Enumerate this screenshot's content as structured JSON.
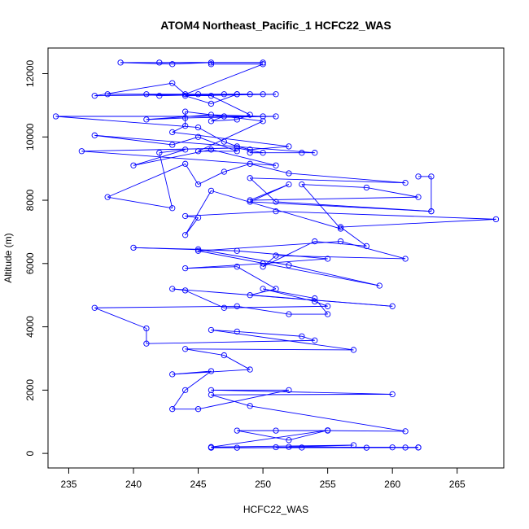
{
  "chart_data": {
    "type": "line",
    "title": "ATOM4 Northeast_Pacific_1 HCFC22_WAS",
    "xlabel": "HCFC22_WAS",
    "ylabel": "Altitude (m)",
    "xlim": [
      233.4,
      268.6
    ],
    "ylim": [
      -460,
      12810
    ],
    "xticks": [
      235,
      240,
      245,
      250,
      255,
      260,
      265
    ],
    "yticks": [
      0,
      2000,
      4000,
      6000,
      8000,
      10000,
      12000
    ],
    "grid": false,
    "legend": "none",
    "line_color": "#0000ff",
    "marker": "open-circle",
    "series": [
      {
        "points": [
          [
            246,
            180
          ],
          [
            262,
            190
          ],
          [
            248,
            180
          ],
          [
            261,
            185
          ],
          [
            253,
            185
          ],
          [
            258,
            180
          ],
          [
            251,
            195
          ],
          [
            262,
            185
          ],
          [
            246,
            185
          ],
          [
            260,
            190
          ],
          [
            252,
            205
          ],
          [
            257,
            260
          ],
          [
            246,
            200
          ],
          [
            255,
            730
          ],
          [
            252,
            420
          ],
          [
            248,
            720
          ],
          [
            251,
            720
          ],
          [
            255,
            720
          ],
          [
            261,
            700
          ],
          [
            249,
            1500
          ],
          [
            246,
            1850
          ],
          [
            260,
            1870
          ],
          [
            246,
            2000
          ],
          [
            252,
            2000
          ],
          [
            245,
            1400
          ],
          [
            243,
            1400
          ],
          [
            244,
            2000
          ],
          [
            246,
            2600
          ],
          [
            243,
            2500
          ],
          [
            249,
            2650
          ],
          [
            247,
            3100
          ],
          [
            244,
            3300
          ],
          [
            257,
            3270
          ],
          [
            246,
            3900
          ],
          [
            248,
            3850
          ],
          [
            253,
            3700
          ],
          [
            254,
            3570
          ],
          [
            241,
            3470
          ],
          [
            241,
            3950
          ],
          [
            237,
            4600
          ],
          [
            248,
            4650
          ],
          [
            252,
            4400
          ],
          [
            255,
            4400
          ],
          [
            254,
            4900
          ],
          [
            250,
            5200
          ],
          [
            254,
            4800
          ],
          [
            255,
            4650
          ],
          [
            247,
            4600
          ],
          [
            244,
            5150
          ],
          [
            243,
            5200
          ],
          [
            260,
            4650
          ],
          [
            249,
            5000
          ],
          [
            251,
            5200
          ],
          [
            248,
            5900
          ],
          [
            244,
            5850
          ],
          [
            250,
            6000
          ],
          [
            255,
            6150
          ],
          [
            248,
            6400
          ],
          [
            240,
            6500
          ],
          [
            245,
            6450
          ],
          [
            252,
            5950
          ],
          [
            259,
            5300
          ],
          [
            245,
            6400
          ],
          [
            256,
            6700
          ],
          [
            261,
            6150
          ],
          [
            251,
            6250
          ],
          [
            250,
            5900
          ],
          [
            254,
            6700
          ],
          [
            258,
            6550
          ],
          [
            256,
            7150
          ],
          [
            268,
            7400
          ],
          [
            251,
            7650
          ],
          [
            244,
            7500
          ],
          [
            245,
            7450
          ],
          [
            244,
            6900
          ],
          [
            246,
            8300
          ],
          [
            256,
            7100
          ],
          [
            253,
            8500
          ],
          [
            258,
            8400
          ],
          [
            262,
            8100
          ],
          [
            249,
            8000
          ],
          [
            252,
            8500
          ],
          [
            249,
            7950
          ],
          [
            263,
            7650
          ],
          [
            251,
            7950
          ],
          [
            249,
            8700
          ],
          [
            261,
            8550
          ],
          [
            252,
            8850
          ],
          [
            249,
            9150
          ],
          [
            247,
            8900
          ],
          [
            245,
            8500
          ],
          [
            244,
            9150
          ],
          [
            238,
            8100
          ],
          [
            243,
            7750
          ],
          [
            242,
            9500
          ],
          [
            244,
            9600
          ],
          [
            240,
            9100
          ],
          [
            246,
            9600
          ],
          [
            251,
            9100
          ],
          [
            236,
            9550
          ],
          [
            248,
            9650
          ],
          [
            250,
            9500
          ],
          [
            249,
            9500
          ],
          [
            253,
            9500
          ],
          [
            254,
            9500
          ],
          [
            237,
            10050
          ],
          [
            243,
            9750
          ],
          [
            245,
            10000
          ],
          [
            248,
            9550
          ],
          [
            245,
            9550
          ],
          [
            250,
            10500
          ],
          [
            244,
            10800
          ],
          [
            244,
            10350
          ],
          [
            243,
            10150
          ],
          [
            252,
            9700
          ],
          [
            249,
            9600
          ],
          [
            248,
            9700
          ],
          [
            247,
            9850
          ],
          [
            245,
            10300
          ],
          [
            234,
            10650
          ],
          [
            251,
            10650
          ],
          [
            244,
            10600
          ],
          [
            241,
            10550
          ],
          [
            246,
            10700
          ],
          [
            250,
            10650
          ],
          [
            247,
            10650
          ],
          [
            246,
            10500
          ],
          [
            248,
            10550
          ],
          [
            249,
            10700
          ],
          [
            246,
            11300
          ],
          [
            241,
            11350
          ],
          [
            242,
            11300
          ],
          [
            247,
            11350
          ],
          [
            250,
            11350
          ],
          [
            245,
            11350
          ],
          [
            238,
            11350
          ],
          [
            248,
            11350
          ],
          [
            251,
            11350
          ],
          [
            244,
            11300
          ],
          [
            246,
            11050
          ],
          [
            248,
            11350
          ],
          [
            249,
            11350
          ],
          [
            237,
            11300
          ],
          [
            243,
            11700
          ],
          [
            244,
            11350
          ],
          [
            250,
            12300
          ],
          [
            246,
            12300
          ],
          [
            246,
            12350
          ],
          [
            243,
            12300
          ],
          [
            239,
            12350
          ],
          [
            250,
            12350
          ],
          [
            242,
            12350
          ]
        ]
      }
    ],
    "extra_points": [
      [
        262,
        8750
      ],
      [
        263,
        8750
      ],
      [
        263,
        7650
      ]
    ]
  }
}
